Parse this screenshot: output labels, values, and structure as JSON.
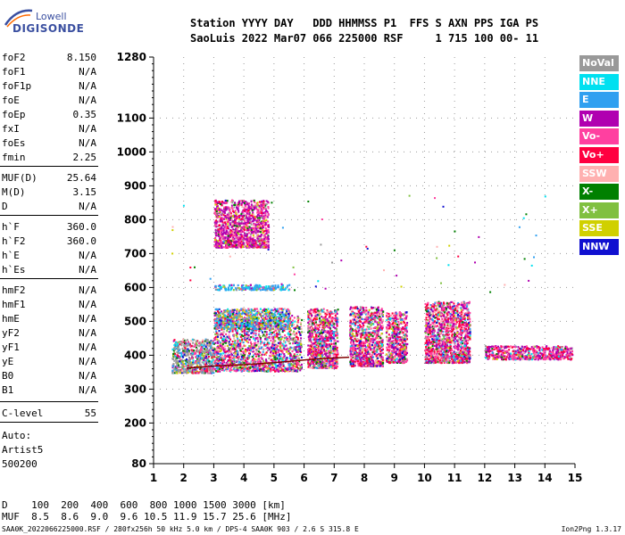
{
  "logo": {
    "line1": "Lowell",
    "line2": "DIGISONDE"
  },
  "header": {
    "labels": "Station YYYY DAY   DDD HHMMSS P1  FFS S AXN PPS IGA PS",
    "values": "SaoLuis 2022 Mar07 066 225000 RSF     1 715 100 00- 11"
  },
  "params": [
    {
      "name": "foF2",
      "value": "8.150"
    },
    {
      "name": "foF1",
      "value": "N/A"
    },
    {
      "name": "foF1p",
      "value": "N/A"
    },
    {
      "name": "foE",
      "value": "N/A"
    },
    {
      "name": "foEp",
      "value": "0.35"
    },
    {
      "name": "fxI",
      "value": "N/A"
    },
    {
      "name": "foEs",
      "value": "N/A"
    },
    {
      "name": "fmin",
      "value": "2.25"
    },
    {
      "name": "MUF(D)",
      "value": "25.64"
    },
    {
      "name": "M(D)",
      "value": "3.15"
    },
    {
      "name": "D",
      "value": "N/A"
    },
    {
      "name": "h`F",
      "value": "360.0"
    },
    {
      "name": "h`F2",
      "value": "360.0"
    },
    {
      "name": "h`E",
      "value": "N/A"
    },
    {
      "name": "h`Es",
      "value": "N/A"
    },
    {
      "name": "hmF2",
      "value": "N/A"
    },
    {
      "name": "hmF1",
      "value": "N/A"
    },
    {
      "name": "hmE",
      "value": "N/A"
    },
    {
      "name": "yF2",
      "value": "N/A"
    },
    {
      "name": "yF1",
      "value": "N/A"
    },
    {
      "name": "yE",
      "value": "N/A"
    },
    {
      "name": "B0",
      "value": "N/A"
    },
    {
      "name": "B1",
      "value": "N/A"
    },
    {
      "name": "C-level",
      "value": "55"
    }
  ],
  "auto": {
    "line1": "Auto:",
    "line2": "Artist5",
    "line3": "500200"
  },
  "legend": [
    {
      "label": "NoVal",
      "color": "#999999"
    },
    {
      "label": "NNE",
      "color": "#00e0f0"
    },
    {
      "label": "E",
      "color": "#30a0f0"
    },
    {
      "label": "W",
      "color": "#b000b0"
    },
    {
      "label": "Vo-",
      "color": "#ff40a0"
    },
    {
      "label": "Vo+",
      "color": "#ff0040"
    },
    {
      "label": "SSW",
      "color": "#ffb0b0"
    },
    {
      "label": "X-",
      "color": "#008000"
    },
    {
      "label": "X+",
      "color": "#80c040"
    },
    {
      "label": "SSE",
      "color": "#d0d000"
    },
    {
      "label": "NNW",
      "color": "#1010d0"
    }
  ],
  "bottom": {
    "d_row": "D    100  200  400  600  800 1000 1500 3000 [km]",
    "muf_row": "MUF  8.5  8.6  9.0  9.6 10.5 11.9 15.7 25.6 [MHz]"
  },
  "footer": {
    "left": "SAA0K_2022066225000.RSF / 280fx256h 50 kHz 5.0 km / DPS-4 SAA0K 903 / 2.6 S 315.8 E",
    "right": "Ion2Png 1.3.17"
  },
  "chart_data": {
    "type": "scatter",
    "xlim": [
      1,
      15
    ],
    "ylim": [
      80,
      1280
    ],
    "xticks": [
      1,
      2,
      3,
      4,
      5,
      6,
      7,
      8,
      9,
      10,
      11,
      12,
      13,
      14,
      15
    ],
    "yticks": [
      80,
      200,
      300,
      400,
      500,
      600,
      700,
      800,
      900,
      1000,
      1100,
      1280
    ],
    "clusters": [
      {
        "x": [
          1.6,
          3.0
        ],
        "y": [
          350,
          450
        ],
        "weights": [
          0.35,
          0.05,
          0.1,
          0.05,
          0.1,
          0.1,
          0.05,
          0.05,
          0.05,
          0.05,
          0.05
        ]
      },
      {
        "x": [
          3.0,
          5.9
        ],
        "y": [
          355,
          520
        ],
        "weights": [
          0.05,
          0.05,
          0.08,
          0.15,
          0.2,
          0.15,
          0.1,
          0.06,
          0.06,
          0.05,
          0.05
        ]
      },
      {
        "x": [
          3.0,
          5.5
        ],
        "y": [
          480,
          540
        ],
        "weights": [
          0.05,
          0.1,
          0.3,
          0.05,
          0.1,
          0.05,
          0.05,
          0.05,
          0.05,
          0.15,
          0.05
        ]
      },
      {
        "x": [
          6.1,
          7.1
        ],
        "y": [
          365,
          540
        ],
        "weights": [
          0.03,
          0.03,
          0.05,
          0.2,
          0.2,
          0.2,
          0.1,
          0.05,
          0.05,
          0.05,
          0.04
        ]
      },
      {
        "x": [
          7.5,
          8.6
        ],
        "y": [
          370,
          545
        ],
        "weights": [
          0.03,
          0.03,
          0.05,
          0.2,
          0.2,
          0.2,
          0.1,
          0.05,
          0.05,
          0.05,
          0.04
        ]
      },
      {
        "x": [
          8.7,
          9.4
        ],
        "y": [
          380,
          530
        ],
        "weights": [
          0.03,
          0.03,
          0.05,
          0.2,
          0.2,
          0.2,
          0.1,
          0.05,
          0.05,
          0.05,
          0.04
        ]
      },
      {
        "x": [
          10.0,
          11.5
        ],
        "y": [
          380,
          560
        ],
        "weights": [
          0.03,
          0.03,
          0.05,
          0.2,
          0.2,
          0.25,
          0.1,
          0.04,
          0.04,
          0.03,
          0.03
        ]
      },
      {
        "x": [
          12.0,
          14.9
        ],
        "y": [
          390,
          430
        ],
        "weights": [
          0.02,
          0.05,
          0.05,
          0.25,
          0.25,
          0.25,
          0.05,
          0.03,
          0.02,
          0.02,
          0.01
        ]
      },
      {
        "x": [
          3.0,
          4.8
        ],
        "y": [
          720,
          860
        ],
        "weights": [
          0.05,
          0.0,
          0.0,
          0.4,
          0.3,
          0.1,
          0.05,
          0.05,
          0.0,
          0.05,
          0.0
        ]
      },
      {
        "x": [
          3.0,
          5.5
        ],
        "y": [
          595,
          610
        ],
        "weights": [
          0.1,
          0.2,
          0.5,
          0.05,
          0.05,
          0.0,
          0.0,
          0.0,
          0.05,
          0.05,
          0.0
        ]
      }
    ],
    "trace": {
      "x": [
        2.1,
        2.5,
        3.0,
        3.5,
        4.0,
        4.5,
        5.0,
        5.5,
        6.0,
        6.5,
        7.0,
        7.5
      ],
      "y": [
        362,
        365,
        368,
        370,
        372,
        375,
        378,
        382,
        386,
        390,
        392,
        394
      ]
    }
  }
}
